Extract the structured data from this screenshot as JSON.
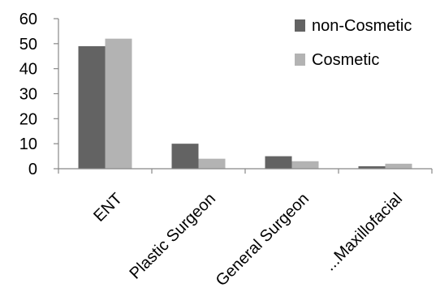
{
  "chart_data": {
    "type": "bar",
    "categories": [
      "ENT",
      "Plastic Surgeon",
      "General Surgeon",
      "...Maxillofacial"
    ],
    "series": [
      {
        "name": "non-Cosmetic",
        "values": [
          49,
          10,
          5,
          1
        ],
        "color": "#636363"
      },
      {
        "name": "Cosmetic",
        "values": [
          52,
          4,
          3,
          2
        ],
        "color": "#b3b3b3"
      }
    ],
    "ylim": [
      0,
      60
    ],
    "yticks": [
      0,
      10,
      20,
      30,
      40,
      50,
      60
    ],
    "grid": false,
    "legend_position": "top-right",
    "title": "",
    "xlabel": "",
    "ylabel": ""
  }
}
